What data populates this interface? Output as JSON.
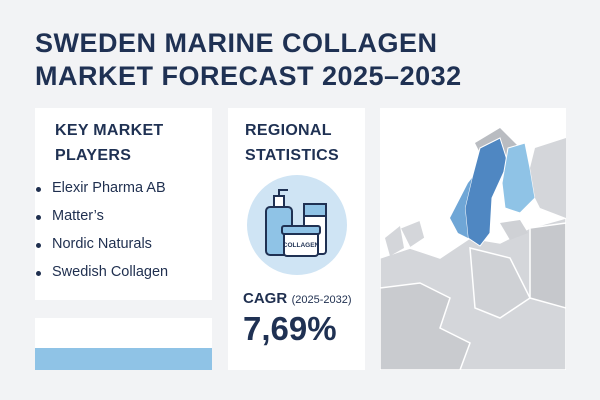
{
  "header": {
    "title_lines": [
      "SWEDEN MARINE COLLAGEN",
      "MARKET FORECAST 2025–2032"
    ]
  },
  "players": {
    "title": "KEY MARKET PLAYERS",
    "items": [
      "Elexir Pharma AB",
      "Matter’s",
      "Nordic Naturals",
      "Swedish Collagen"
    ]
  },
  "stats": {
    "title": "REGIONAL STATISTICS",
    "icon_label": "COLLAGEN",
    "cagr_label": "CAGR",
    "cagr_period": "(2025-2032)",
    "cagr_value": "7,69%"
  }
}
